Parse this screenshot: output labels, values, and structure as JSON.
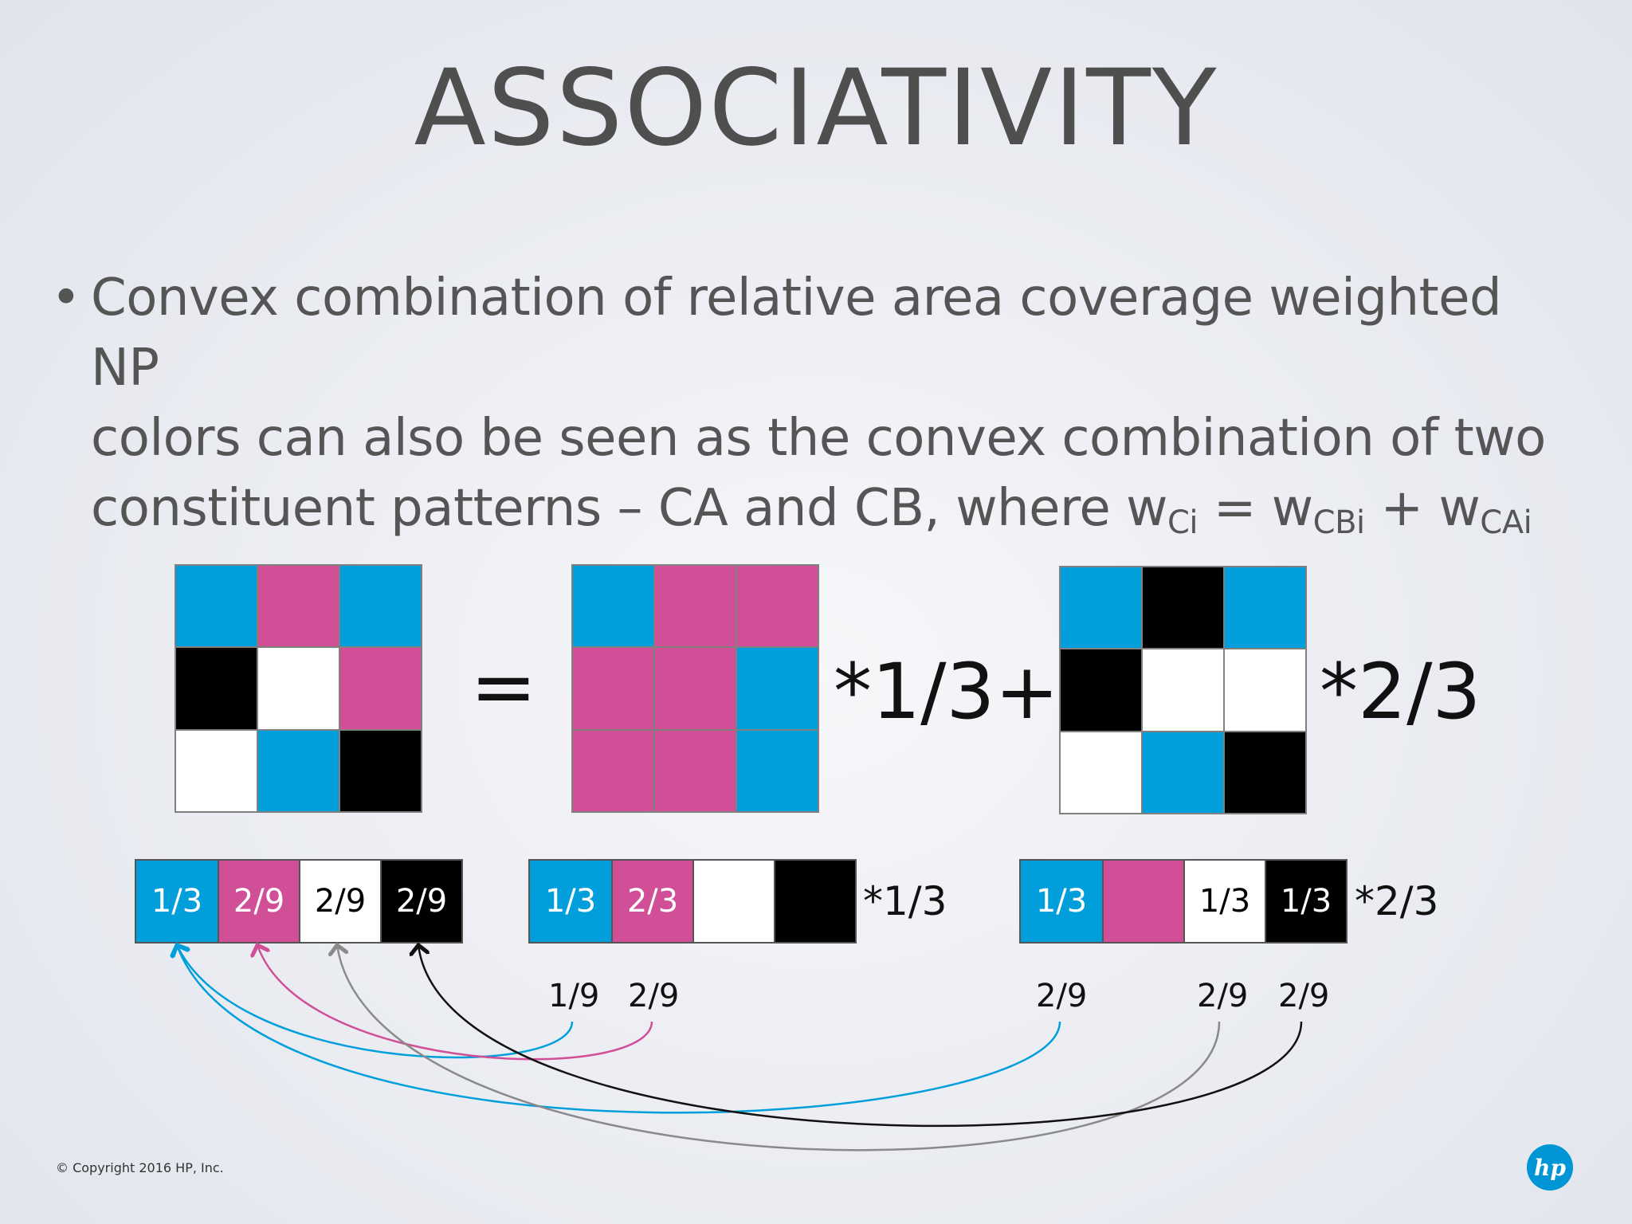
{
  "title": "ASSOCIATIVITY",
  "bullet": {
    "line1": "Convex combination of relative area coverage weighted NP",
    "line2": "colors can also be seen as the convex combination of two",
    "line3_prefix": "constituent patterns – CA and CB, where w",
    "sub_ci": "Ci",
    "eq_mid": " = w",
    "sub_cbi": "CBi",
    "plus": " + w",
    "sub_cai": "CAi"
  },
  "colors": {
    "cyan": "#009fdb",
    "magenta": "#d04f97",
    "white": "#ffffff",
    "black": "#000000"
  },
  "grids": {
    "c": [
      "cyan",
      "magenta",
      "cyan",
      "black",
      "white",
      "magenta",
      "white",
      "cyan",
      "black"
    ],
    "ca": [
      "cyan",
      "magenta",
      "magenta",
      "magenta",
      "magenta",
      "cyan",
      "magenta",
      "magenta",
      "cyan"
    ],
    "cb": [
      "cyan",
      "black",
      "cyan",
      "black",
      "white",
      "white",
      "white",
      "cyan",
      "black"
    ]
  },
  "operators": {
    "equals": "=",
    "mult_a": "*1/3+",
    "mult_b": "*2/3"
  },
  "bars": {
    "c": [
      {
        "color": "cyan",
        "label": "1/3"
      },
      {
        "color": "magenta",
        "label": "2/9"
      },
      {
        "color": "white",
        "label": "2/9"
      },
      {
        "color": "black",
        "label": "2/9"
      }
    ],
    "ca": [
      {
        "color": "cyan",
        "label": "1/3"
      },
      {
        "color": "magenta",
        "label": "2/3"
      },
      {
        "color": "white",
        "label": ""
      },
      {
        "color": "black",
        "label": ""
      }
    ],
    "cb": [
      {
        "color": "cyan",
        "label": "1/3"
      },
      {
        "color": "magenta",
        "label": ""
      },
      {
        "color": "white",
        "label": "1/3"
      },
      {
        "color": "black",
        "label": "1/3"
      }
    ]
  },
  "bar_mults": {
    "ca": "*1/3",
    "cb": "*2/3"
  },
  "contributions": {
    "ca_cyan": "1/9",
    "ca_magenta": "2/9",
    "cb_cyan": "2/9",
    "cb_white": "2/9",
    "cb_black": "2/9"
  },
  "footer": {
    "copyright": "© Copyright 2016 HP, Inc.",
    "logo": "hp"
  }
}
